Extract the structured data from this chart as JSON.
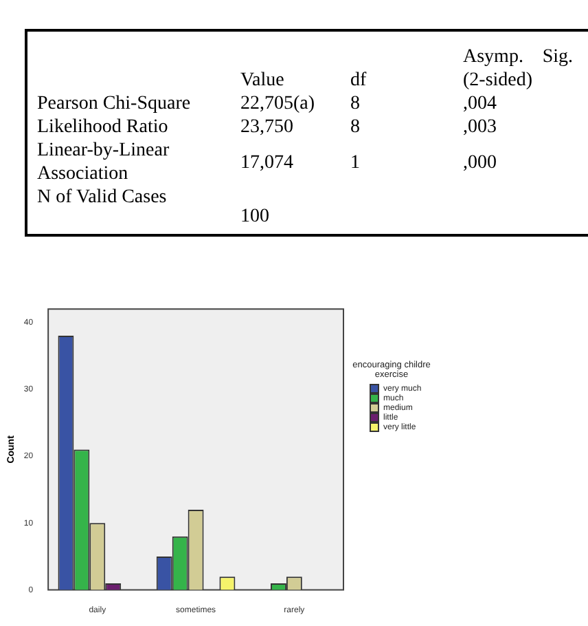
{
  "chart_data": [
    {
      "type": "other",
      "annotations": [
        "Value",
        "df",
        "Asymp. Sig. (2-sided)",
        "Pearson Chi-Square",
        "22,705(a)",
        "8",
        ",004",
        "Likelihood Ratio",
        "23,750",
        "8",
        ",003",
        "Linear-by-Linear Association",
        "17,074",
        "1",
        ",000",
        "N of Valid Cases",
        "100"
      ]
    },
    {
      "type": "bar",
      "categories": [
        "daily",
        "sometimes",
        "rarely"
      ],
      "ylabel": "Count",
      "legend_title": "encouraging childre exercise",
      "series": [
        {
          "name": "very much",
          "color": "#3953a4",
          "values": [
            38,
            5,
            0
          ]
        },
        {
          "name": "much",
          "color": "#35b44a",
          "values": [
            21,
            8,
            1
          ]
        },
        {
          "name": "medium",
          "color": "#d2cc95",
          "values": [
            10,
            12,
            2
          ]
        },
        {
          "name": "little",
          "color": "#6b1f6e",
          "values": [
            1,
            0,
            0
          ]
        },
        {
          "name": "very little",
          "color": "#f5f36b",
          "values": [
            0,
            2,
            0
          ]
        }
      ],
      "ylim": [
        0,
        42
      ],
      "yticks": [
        0,
        10,
        20,
        30,
        40
      ],
      "grid": false,
      "legend": "right"
    }
  ]
}
